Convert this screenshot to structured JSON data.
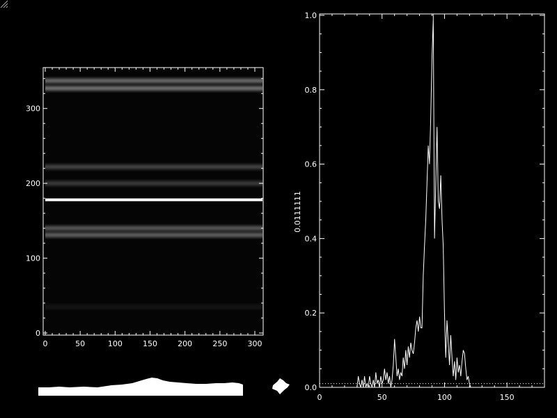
{
  "chart_data": [
    {
      "type": "heatmap",
      "title": "",
      "xlabel": "",
      "ylabel": "",
      "xlim": [
        0,
        300
      ],
      "ylim": [
        0,
        350
      ],
      "x_ticks": [
        "0",
        "50",
        "100",
        "150",
        "200",
        "250",
        "300"
      ],
      "y_ticks": [
        "0",
        "100",
        "200",
        "300"
      ],
      "x_tick_values": [
        0,
        50,
        100,
        150,
        200,
        250,
        300
      ],
      "y_tick_values": [
        0,
        100,
        200,
        300
      ],
      "colormap": "grayscale",
      "bands": [
        {
          "y": 337,
          "intensity": 0.55
        },
        {
          "y": 327,
          "intensity": 0.6
        },
        {
          "y": 222,
          "intensity": 0.35
        },
        {
          "y": 200,
          "intensity": 0.3
        },
        {
          "y": 178,
          "intensity": 1.0
        },
        {
          "y": 140,
          "intensity": 0.45
        },
        {
          "y": 131,
          "intensity": 0.5
        },
        {
          "y": 35,
          "intensity": 0.12
        }
      ]
    },
    {
      "type": "line",
      "title": "",
      "xlabel": "",
      "ylabel": "0.0111111",
      "xlim": [
        0,
        180
      ],
      "ylim": [
        0,
        1.0
      ],
      "x_ticks": [
        "0",
        "50",
        "100",
        "150"
      ],
      "y_ticks": [
        "0.0",
        "0.2",
        "0.4",
        "0.6",
        "0.8",
        "1.0"
      ],
      "x_tick_values": [
        0,
        50,
        100,
        150
      ],
      "y_tick_values": [
        0,
        0.2,
        0.4,
        0.6,
        0.8,
        1.0
      ],
      "baseline": 0.01,
      "series": [
        {
          "x": [
            30,
            31,
            32,
            33,
            34,
            35,
            36,
            37,
            38,
            39,
            40,
            41,
            42,
            43,
            44,
            45,
            46,
            47,
            48,
            49,
            50,
            51,
            52,
            53,
            54,
            55,
            56,
            57,
            58,
            59,
            60,
            61,
            62,
            63,
            64,
            65,
            66,
            67,
            68,
            69,
            70,
            71,
            72,
            73,
            74,
            75,
            76,
            77,
            78,
            79,
            80,
            81,
            82,
            83,
            84,
            85,
            86,
            87,
            88,
            89,
            90,
            91,
            92,
            93,
            94,
            95,
            96,
            97,
            98,
            99,
            100,
            101,
            102,
            103,
            104,
            105,
            106,
            107,
            108,
            109,
            110,
            111,
            112,
            113,
            114,
            115,
            116,
            117,
            118,
            119,
            120,
            121,
            122
          ],
          "y": [
            0,
            0.03,
            0.01,
            0,
            0.02,
            0,
            0.03,
            0,
            0.01,
            0,
            0.03,
            0.01,
            0,
            0.02,
            0,
            0.04,
            0.01,
            0.02,
            0,
            0.03,
            0.01,
            0.02,
            0.05,
            0.02,
            0.04,
            0.01,
            0.03,
            0,
            0.02,
            0.06,
            0.13,
            0.08,
            0.03,
            0.05,
            0.02,
            0.04,
            0.03,
            0.08,
            0.05,
            0.1,
            0.06,
            0.11,
            0.08,
            0.12,
            0.1,
            0.09,
            0.12,
            0.16,
            0.18,
            0.15,
            0.19,
            0.16,
            0.16,
            0.3,
            0.38,
            0.45,
            0.55,
            0.65,
            0.6,
            0.73,
            0.89,
            0.99,
            0.4,
            0.55,
            0.7,
            0.5,
            0.48,
            0.57,
            0.45,
            0.38,
            0.2,
            0.08,
            0.18,
            0.12,
            0.06,
            0.14,
            0.08,
            0.03,
            0.07,
            0.02,
            0.08,
            0.04,
            0.06,
            0.03,
            0.07,
            0.1,
            0.09,
            0.05,
            0.02,
            0.03,
            0.01,
            0,
            0
          ]
        }
      ]
    }
  ],
  "icons": {
    "resize": "resize-grip-icon"
  }
}
